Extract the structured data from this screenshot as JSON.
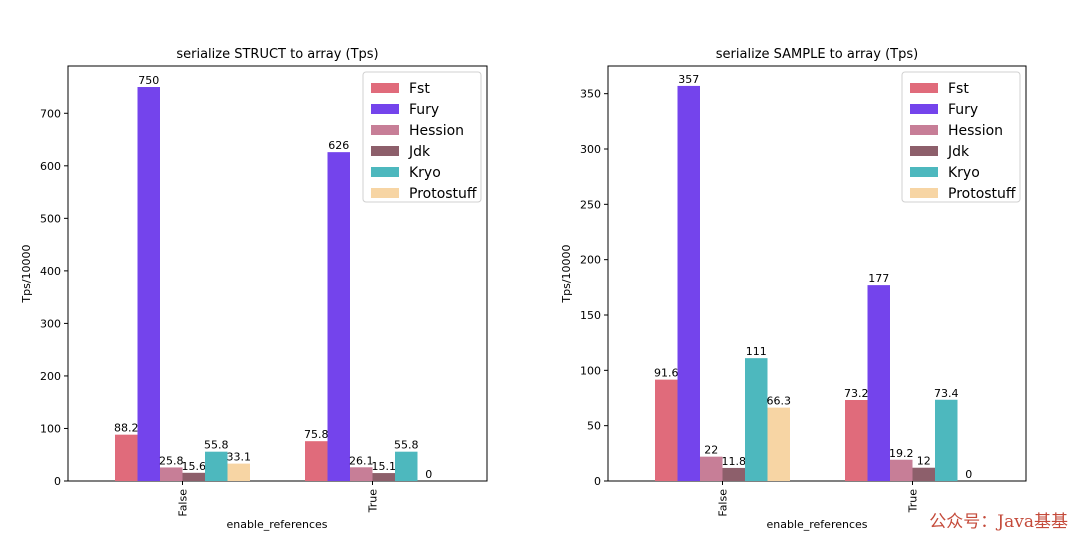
{
  "chart_data": [
    {
      "type": "bar",
      "title": "serialize STRUCT to array (Tps)",
      "xlabel": "enable_references",
      "ylabel": "Tps/10000",
      "categories": [
        "False",
        "True"
      ],
      "ylim": [
        0,
        790
      ],
      "yticks": [
        0,
        100,
        200,
        300,
        400,
        500,
        600,
        700
      ],
      "legend": "top-right",
      "series": [
        {
          "name": "Fst",
          "values": [
            88.2,
            75.8
          ],
          "labels": [
            "88.2",
            "75.8"
          ]
        },
        {
          "name": "Fury",
          "values": [
            750,
            626
          ],
          "labels": [
            "750",
            "626"
          ]
        },
        {
          "name": "Hession",
          "values": [
            25.8,
            26.1
          ],
          "labels": [
            "25.8",
            "26.1"
          ]
        },
        {
          "name": "Jdk",
          "values": [
            15.6,
            15.1
          ],
          "labels": [
            "15.6",
            "15.1"
          ]
        },
        {
          "name": "Kryo",
          "values": [
            55.8,
            55.8
          ],
          "labels": [
            "55.8",
            "55.8"
          ]
        },
        {
          "name": "Protostuff",
          "values": [
            33.1,
            0
          ],
          "labels": [
            "33.1",
            "0"
          ]
        }
      ]
    },
    {
      "type": "bar",
      "title": "serialize SAMPLE to array (Tps)",
      "xlabel": "enable_references",
      "ylabel": "Tps/10000",
      "categories": [
        "False",
        "True"
      ],
      "ylim": [
        0,
        375
      ],
      "yticks": [
        0,
        50,
        100,
        150,
        200,
        250,
        300,
        350
      ],
      "legend": "top-right",
      "series": [
        {
          "name": "Fst",
          "values": [
            91.6,
            73.2
          ],
          "labels": [
            "91.6",
            "73.2"
          ]
        },
        {
          "name": "Fury",
          "values": [
            357,
            177
          ],
          "labels": [
            "357",
            "177"
          ]
        },
        {
          "name": "Hession",
          "values": [
            22,
            19.2
          ],
          "labels": [
            "22",
            "19.2"
          ]
        },
        {
          "name": "Jdk",
          "values": [
            11.8,
            12
          ],
          "labels": [
            "11.8",
            "12"
          ]
        },
        {
          "name": "Kryo",
          "values": [
            111,
            73.4
          ],
          "labels": [
            "111",
            "73.4"
          ]
        },
        {
          "name": "Protostuff",
          "values": [
            66.3,
            0
          ],
          "labels": [
            "66.3",
            "0"
          ]
        }
      ]
    }
  ],
  "colors": [
    "#e06b7b",
    "#7444ec",
    "#c77e97",
    "#8d5f6b",
    "#4db8be",
    "#f7d5a4"
  ],
  "watermark": "公众号：Java基基"
}
